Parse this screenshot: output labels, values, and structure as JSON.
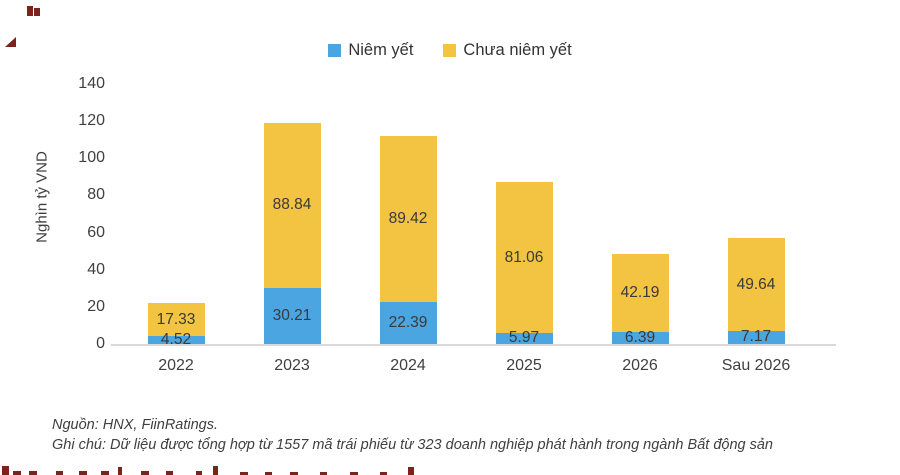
{
  "chart_data": {
    "type": "bar",
    "stacked": true,
    "categories": [
      "2022",
      "2023",
      "2024",
      "2025",
      "2026",
      "Sau 2026"
    ],
    "series": [
      {
        "name": "Niêm yết",
        "color": "#4aa5e0",
        "values": [
          4.52,
          30.21,
          22.39,
          5.97,
          6.39,
          7.17
        ]
      },
      {
        "name": "Chưa niêm yết",
        "color": "#f3c342",
        "values": [
          17.33,
          88.84,
          89.42,
          81.06,
          42.19,
          49.64
        ]
      }
    ],
    "ylabel": "Nghìn tỷ VND",
    "xlabel": "",
    "title": "",
    "ylim": [
      0,
      140
    ],
    "yticks": [
      0,
      20,
      40,
      60,
      80,
      100,
      120,
      140
    ],
    "grid": false,
    "legend_position": "top-center",
    "value_labels_decimals": 2
  },
  "footer": {
    "source": "Nguồn: HNX, FiinRatings.",
    "note": "Ghi chú: Dữ liệu được tổng hợp từ 1557 mã trái phiếu từ 323 doanh nghiệp phát hành trong ngành Bất động sản"
  }
}
